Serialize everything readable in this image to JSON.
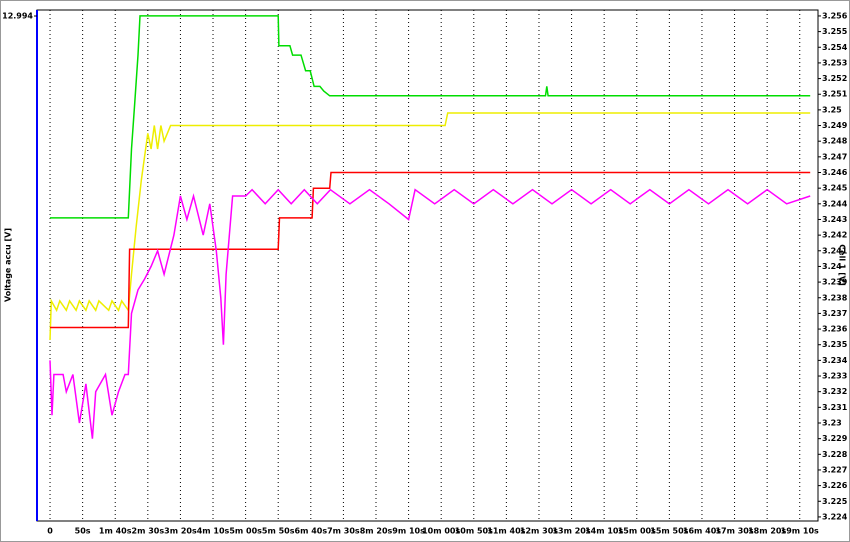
{
  "chart_data": {
    "type": "line",
    "y_label": "Cell 1 [V]",
    "y2_label": "Voltage accu [V]",
    "y2ticks": [
      {
        "value": 12.994,
        "label": "12.994"
      }
    ],
    "xlim": [
      -20,
      1178
    ],
    "xticks": [
      {
        "value": 0,
        "label": "0"
      },
      {
        "value": 50,
        "label": "50s"
      },
      {
        "value": 100,
        "label": "1m 40s"
      },
      {
        "value": 150,
        "label": "2m 30s"
      },
      {
        "value": 200,
        "label": "3m 20s"
      },
      {
        "value": 250,
        "label": "4m 10s"
      },
      {
        "value": 300,
        "label": "5m 00s"
      },
      {
        "value": 350,
        "label": "5m 50s"
      },
      {
        "value": 400,
        "label": "6m 40s"
      },
      {
        "value": 450,
        "label": "7m 30s"
      },
      {
        "value": 500,
        "label": "8m 20s"
      },
      {
        "value": 550,
        "label": "9m 10s"
      },
      {
        "value": 600,
        "label": "10m 00s"
      },
      {
        "value": 650,
        "label": "10m 50s"
      },
      {
        "value": 700,
        "label": "11m 40s"
      },
      {
        "value": 750,
        "label": "12m 30s"
      },
      {
        "value": 800,
        "label": "13m 20s"
      },
      {
        "value": 850,
        "label": "14m 10s"
      },
      {
        "value": 900,
        "label": "15m 00s"
      },
      {
        "value": 950,
        "label": "15m 50s"
      },
      {
        "value": 1000,
        "label": "16m 40s"
      },
      {
        "value": 1050,
        "label": "17m 30s"
      },
      {
        "value": 1100,
        "label": "18m 20s"
      },
      {
        "value": 1150,
        "label": "19m 10s"
      }
    ],
    "ylim": [
      3.22374,
      3.25638
    ],
    "yticks": [
      3.224,
      3.225,
      3.226,
      3.227,
      3.228,
      3.229,
      3.23,
      3.231,
      3.232,
      3.233,
      3.234,
      3.235,
      3.236,
      3.237,
      3.238,
      3.239,
      3.24,
      3.241,
      3.242,
      3.243,
      3.244,
      3.245,
      3.246,
      3.247,
      3.248,
      3.249,
      3.25,
      3.251,
      3.252,
      3.253,
      3.254,
      3.255,
      3.256
    ],
    "series": [
      {
        "color": "#00dd00",
        "x": [
          0,
          120,
          125,
          130,
          135,
          138,
          350,
          351,
          368,
          372,
          385,
          392,
          399,
          405,
          414,
          420,
          429,
          760,
          762,
          764,
          1166
        ],
        "values": [
          3.2431,
          3.2431,
          3.2475,
          3.2505,
          3.2535,
          3.256,
          3.256,
          3.2541,
          3.2541,
          3.2535,
          3.2535,
          3.2525,
          3.2525,
          3.2515,
          3.2515,
          3.2512,
          3.2509,
          3.2509,
          3.2515,
          3.2509,
          3.2509
        ]
      },
      {
        "color": "#eeee00",
        "x": [
          0,
          2,
          10,
          15,
          25,
          30,
          40,
          45,
          55,
          60,
          70,
          75,
          90,
          95,
          105,
          110,
          120,
          125,
          132,
          140,
          150,
          155,
          160,
          165,
          170,
          175,
          185,
          606,
          610,
          1166
        ],
        "values": [
          3.2353,
          3.2378,
          3.2372,
          3.2378,
          3.2372,
          3.2378,
          3.2372,
          3.2378,
          3.2372,
          3.2378,
          3.2372,
          3.2378,
          3.2372,
          3.2378,
          3.2372,
          3.2378,
          3.2372,
          3.2395,
          3.2425,
          3.2455,
          3.2485,
          3.2475,
          3.249,
          3.2475,
          3.249,
          3.248,
          3.249,
          3.249,
          3.2498,
          3.2498
        ]
      },
      {
        "color": "#ff0000",
        "x": [
          0,
          120,
          122,
          350,
          352,
          402,
          404,
          429,
          431,
          1166
        ],
        "values": [
          3.2361,
          3.2361,
          3.2411,
          3.2411,
          3.2431,
          3.2431,
          3.245,
          3.245,
          3.246,
          3.246
        ]
      },
      {
        "color": "#ff00ff",
        "x": [
          0,
          3,
          6,
          20,
          25,
          35,
          45,
          55,
          65,
          70,
          85,
          95,
          105,
          115,
          120,
          125,
          135,
          145,
          155,
          165,
          175,
          190,
          200,
          210,
          220,
          235,
          245,
          255,
          262,
          266,
          270,
          280,
          300,
          310,
          330,
          350,
          370,
          390,
          410,
          430,
          460,
          490,
          520,
          550,
          560,
          590,
          620,
          650,
          680,
          710,
          740,
          770,
          800,
          830,
          860,
          890,
          920,
          950,
          980,
          1010,
          1040,
          1070,
          1100,
          1130,
          1166
        ],
        "values": [
          3.234,
          3.2305,
          3.2331,
          3.2331,
          3.232,
          3.2331,
          3.23,
          3.2325,
          3.229,
          3.232,
          3.2331,
          3.2305,
          3.232,
          3.2331,
          3.2331,
          3.237,
          3.2385,
          3.2392,
          3.24,
          3.241,
          3.2395,
          3.242,
          3.2445,
          3.243,
          3.2445,
          3.242,
          3.244,
          3.241,
          3.238,
          3.235,
          3.2395,
          3.2445,
          3.2445,
          3.2449,
          3.244,
          3.2449,
          3.244,
          3.2449,
          3.244,
          3.2449,
          3.244,
          3.2449,
          3.244,
          3.243,
          3.2449,
          3.244,
          3.2449,
          3.244,
          3.2449,
          3.244,
          3.2449,
          3.244,
          3.2449,
          3.244,
          3.2449,
          3.244,
          3.2449,
          3.244,
          3.2449,
          3.244,
          3.2449,
          3.244,
          3.2449,
          3.244,
          3.2445
        ]
      }
    ]
  }
}
